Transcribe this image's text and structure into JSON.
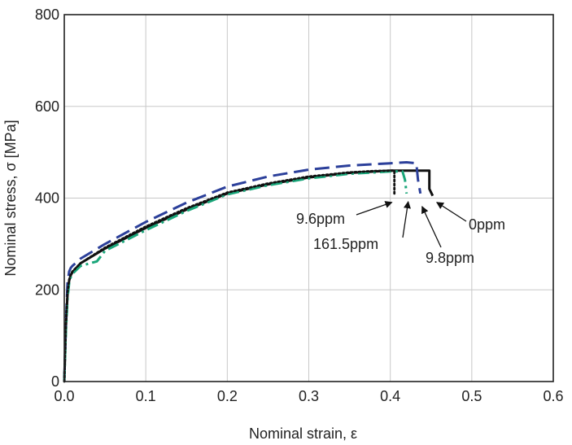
{
  "chart_data": {
    "type": "line",
    "title": "",
    "xlabel": "Nominal strain, ε",
    "ylabel": "Nominal stress, σ [MPa]",
    "xlim": [
      0.0,
      0.6
    ],
    "ylim": [
      0,
      800
    ],
    "x_ticks": [
      "0.0",
      "0.1",
      "0.2",
      "0.3",
      "0.4",
      "0.5",
      "0.6"
    ],
    "y_ticks": [
      "0",
      "200",
      "400",
      "600",
      "800"
    ],
    "grid": true,
    "legend": "none",
    "series": [
      {
        "name": "0ppm",
        "color": "#111111",
        "dash": "solid",
        "x": [
          0.0,
          0.002,
          0.004,
          0.006,
          0.008,
          0.01,
          0.02,
          0.05,
          0.1,
          0.15,
          0.2,
          0.25,
          0.3,
          0.35,
          0.4,
          0.43,
          0.445,
          0.448,
          0.448,
          0.452
        ],
        "y": [
          0,
          120,
          190,
          220,
          232,
          238,
          258,
          290,
          335,
          375,
          410,
          430,
          445,
          455,
          460,
          460,
          460,
          460,
          420,
          405
        ]
      },
      {
        "name": "9.8ppm",
        "color": "#2b3f9a",
        "dash": "long-dash",
        "x": [
          0.0,
          0.002,
          0.004,
          0.006,
          0.008,
          0.01,
          0.02,
          0.05,
          0.1,
          0.15,
          0.2,
          0.25,
          0.3,
          0.35,
          0.4,
          0.42,
          0.432,
          0.434,
          0.437
        ],
        "y": [
          0,
          130,
          215,
          240,
          248,
          252,
          268,
          300,
          348,
          390,
          425,
          447,
          462,
          471,
          476,
          478,
          476,
          440,
          410
        ]
      },
      {
        "name": "161.5ppm",
        "color": "#1aa67a",
        "dash": "dash-dot",
        "x": [
          0.0,
          0.002,
          0.004,
          0.006,
          0.008,
          0.01,
          0.02,
          0.04,
          0.05,
          0.1,
          0.15,
          0.2,
          0.25,
          0.3,
          0.35,
          0.4,
          0.415,
          0.418,
          0.42
        ],
        "y": [
          0,
          110,
          180,
          215,
          228,
          235,
          252,
          262,
          285,
          330,
          372,
          408,
          428,
          443,
          453,
          458,
          458,
          440,
          410
        ]
      },
      {
        "name": "9.6ppm",
        "color": "#111111",
        "dash": "dotted",
        "x": [
          0.0,
          0.002,
          0.004,
          0.006,
          0.008,
          0.01,
          0.02,
          0.05,
          0.1,
          0.15,
          0.2,
          0.25,
          0.3,
          0.35,
          0.38,
          0.4,
          0.405,
          0.405
        ],
        "y": [
          0,
          125,
          195,
          222,
          234,
          240,
          258,
          292,
          338,
          378,
          412,
          432,
          447,
          456,
          459,
          460,
          460,
          405
        ]
      }
    ],
    "annotations": [
      {
        "text": "9.6ppm",
        "points_to": [
          0.405,
          405
        ]
      },
      {
        "text": "161.5ppm",
        "points_to": [
          0.42,
          410
        ]
      },
      {
        "text": "9.8ppm",
        "points_to": [
          0.437,
          410
        ]
      },
      {
        "text": "0ppm",
        "points_to": [
          0.452,
          405
        ]
      }
    ]
  }
}
